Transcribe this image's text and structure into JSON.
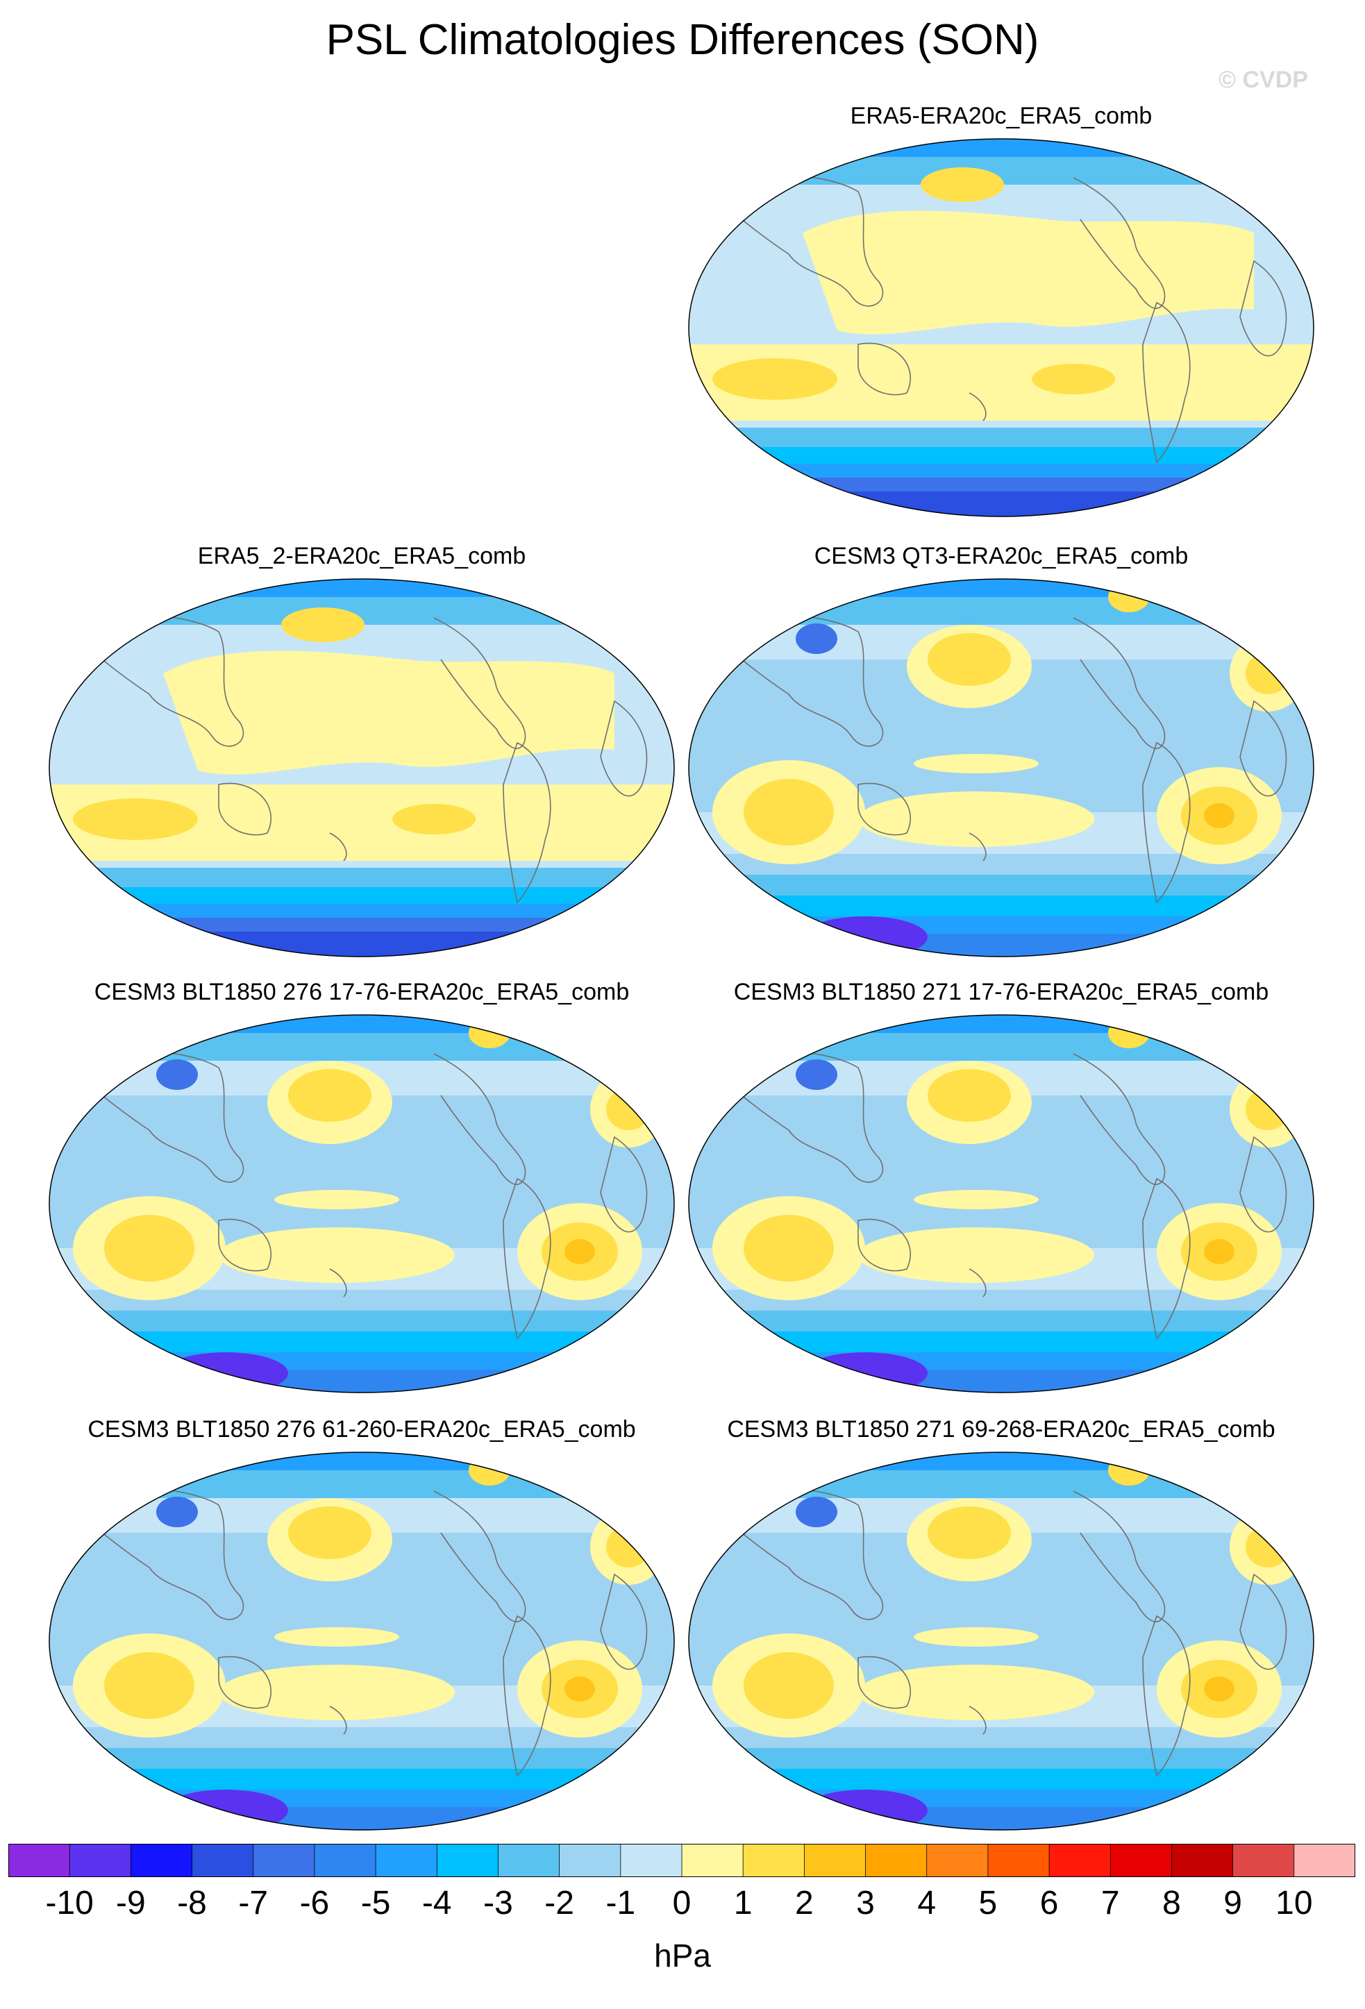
{
  "figure": {
    "title": "PSL Climatologies Differences (SON)",
    "watermark": "© CVDP",
    "units": "hPa"
  },
  "panels": [
    {
      "id": "p1",
      "title": "ERA5-ERA20c_ERA5_comb",
      "variant": "obs"
    },
    {
      "id": "p2",
      "title": "ERA5_2-ERA20c_ERA5_comb",
      "variant": "obs"
    },
    {
      "id": "p3",
      "title": "CESM3 QT3-ERA20c_ERA5_comb",
      "variant": "model"
    },
    {
      "id": "p4",
      "title": "CESM3 BLT1850 276 17-76-ERA20c_ERA5_comb",
      "variant": "model"
    },
    {
      "id": "p5",
      "title": "CESM3 BLT1850 271 17-76-ERA20c_ERA5_comb",
      "variant": "model"
    },
    {
      "id": "p6",
      "title": "CESM3 BLT1850 276 61-260-ERA20c_ERA5_comb",
      "variant": "model"
    },
    {
      "id": "p7",
      "title": "CESM3 BLT1850 271 69-268-ERA20c_ERA5_comb",
      "variant": "model"
    }
  ],
  "colorbar": {
    "labels": [
      "-10",
      "-9",
      "-8",
      "-7",
      "-6",
      "-5",
      "-4",
      "-3",
      "-2",
      "-1",
      "0",
      "1",
      "2",
      "3",
      "4",
      "5",
      "6",
      "7",
      "8",
      "9",
      "10"
    ],
    "colors": [
      "#8a2be2",
      "#5a32f0",
      "#1414ff",
      "#2b4fe0",
      "#3d72e8",
      "#2f86f0",
      "#22a0ff",
      "#00c0ff",
      "#5ac2f0",
      "#9fd3f2",
      "#c6e6f8",
      "#fff8a0",
      "#ffe04a",
      "#ffc41a",
      "#ffa400",
      "#ff8415",
      "#ff5a00",
      "#ff1a0a",
      "#e60000",
      "#c40000",
      "#e04848",
      "#ffb8b8"
    ]
  }
}
